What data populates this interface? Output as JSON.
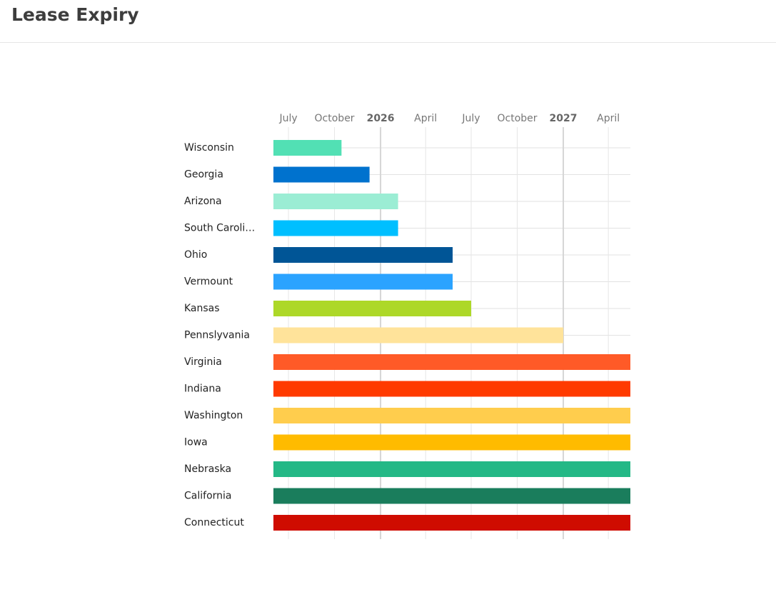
{
  "page": {
    "title": "Lease Expiry"
  },
  "chart_data": {
    "type": "bar",
    "orientation": "horizontal",
    "x_axis": "time",
    "x_domain": [
      "2025-06-01",
      "2027-05-15"
    ],
    "x_ticks": [
      {
        "date": "2025-07-01",
        "label": "July",
        "major": false
      },
      {
        "date": "2025-10-01",
        "label": "October",
        "major": false
      },
      {
        "date": "2026-01-01",
        "label": "2026",
        "major": true
      },
      {
        "date": "2026-04-01",
        "label": "April",
        "major": false
      },
      {
        "date": "2026-07-01",
        "label": "July",
        "major": false
      },
      {
        "date": "2026-10-01",
        "label": "October",
        "major": false
      },
      {
        "date": "2027-01-01",
        "label": "2027",
        "major": true
      },
      {
        "date": "2027-04-01",
        "label": "April",
        "major": false
      }
    ],
    "grid": true,
    "categories": [
      "Wisconsin",
      "Georgia",
      "Arizona",
      "South Caroli…",
      "Ohio",
      "Vermount",
      "Kansas",
      "Pennslyvania",
      "Virginia",
      "Indiana",
      "Washington",
      "Iowa",
      "Nebraska",
      "California",
      "Connecticut"
    ],
    "bars": [
      {
        "label": "Wisconsin",
        "start": "2025-06-01",
        "end": "2025-10-15",
        "color": "#52e0b4"
      },
      {
        "label": "Georgia",
        "start": "2025-06-01",
        "end": "2025-12-10",
        "color": "#0072ce"
      },
      {
        "label": "Arizona",
        "start": "2025-06-01",
        "end": "2026-02-05",
        "color": "#9bedd4"
      },
      {
        "label": "South Caroli…",
        "start": "2025-06-01",
        "end": "2026-02-05",
        "color": "#00bfff"
      },
      {
        "label": "Ohio",
        "start": "2025-06-01",
        "end": "2026-05-25",
        "color": "#005596"
      },
      {
        "label": "Vermount",
        "start": "2025-06-01",
        "end": "2026-05-25",
        "color": "#2ba3ff"
      },
      {
        "label": "Kansas",
        "start": "2025-06-01",
        "end": "2026-07-01",
        "color": "#add828"
      },
      {
        "label": "Pennslyvania",
        "start": "2025-06-01",
        "end": "2027-01-01",
        "color": "#ffe39a"
      },
      {
        "label": "Virginia",
        "start": "2025-06-01",
        "end": "2027-05-15",
        "color": "#ff5a27"
      },
      {
        "label": "Indiana",
        "start": "2025-06-01",
        "end": "2027-05-15",
        "color": "#ff3a00"
      },
      {
        "label": "Washington",
        "start": "2025-06-01",
        "end": "2027-05-15",
        "color": "#ffcd4d"
      },
      {
        "label": "Iowa",
        "start": "2025-06-01",
        "end": "2027-05-15",
        "color": "#ffbb00"
      },
      {
        "label": "Nebraska",
        "start": "2025-06-01",
        "end": "2027-05-15",
        "color": "#24b886"
      },
      {
        "label": "California",
        "start": "2025-06-01",
        "end": "2027-05-15",
        "color": "#1a7d5c"
      },
      {
        "label": "Connecticut",
        "start": "2025-06-01",
        "end": "2027-05-15",
        "color": "#cf0c00"
      }
    ]
  }
}
